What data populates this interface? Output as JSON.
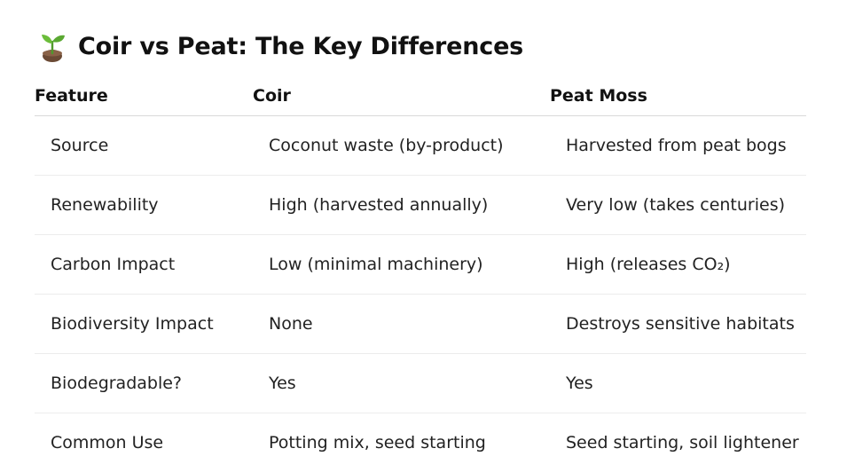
{
  "title": {
    "text": "Coir vs Peat: The Key Differences",
    "icon": "seedling-icon"
  },
  "table": {
    "headers": [
      "Feature",
      "Coir",
      "Peat Moss"
    ],
    "rows": [
      [
        "Source",
        "Coconut waste (by-product)",
        "Harvested from peat bogs"
      ],
      [
        "Renewability",
        "High (harvested annually)",
        "Very low (takes centuries)"
      ],
      [
        "Carbon Impact",
        "Low (minimal machinery)",
        "High (releases CO₂)"
      ],
      [
        "Biodiversity Impact",
        "None",
        "Destroys sensitive habitats"
      ],
      [
        "Biodegradable?",
        "Yes",
        "Yes"
      ],
      [
        "Common Use",
        "Potting mix, seed starting",
        "Seed starting, soil lightener"
      ]
    ]
  },
  "colors": {
    "text": "#111111",
    "rule": "#d9d9d9",
    "row_divider": "#ececec",
    "sprout_leaf": "#5aa832",
    "soil": "#6b4a35"
  }
}
